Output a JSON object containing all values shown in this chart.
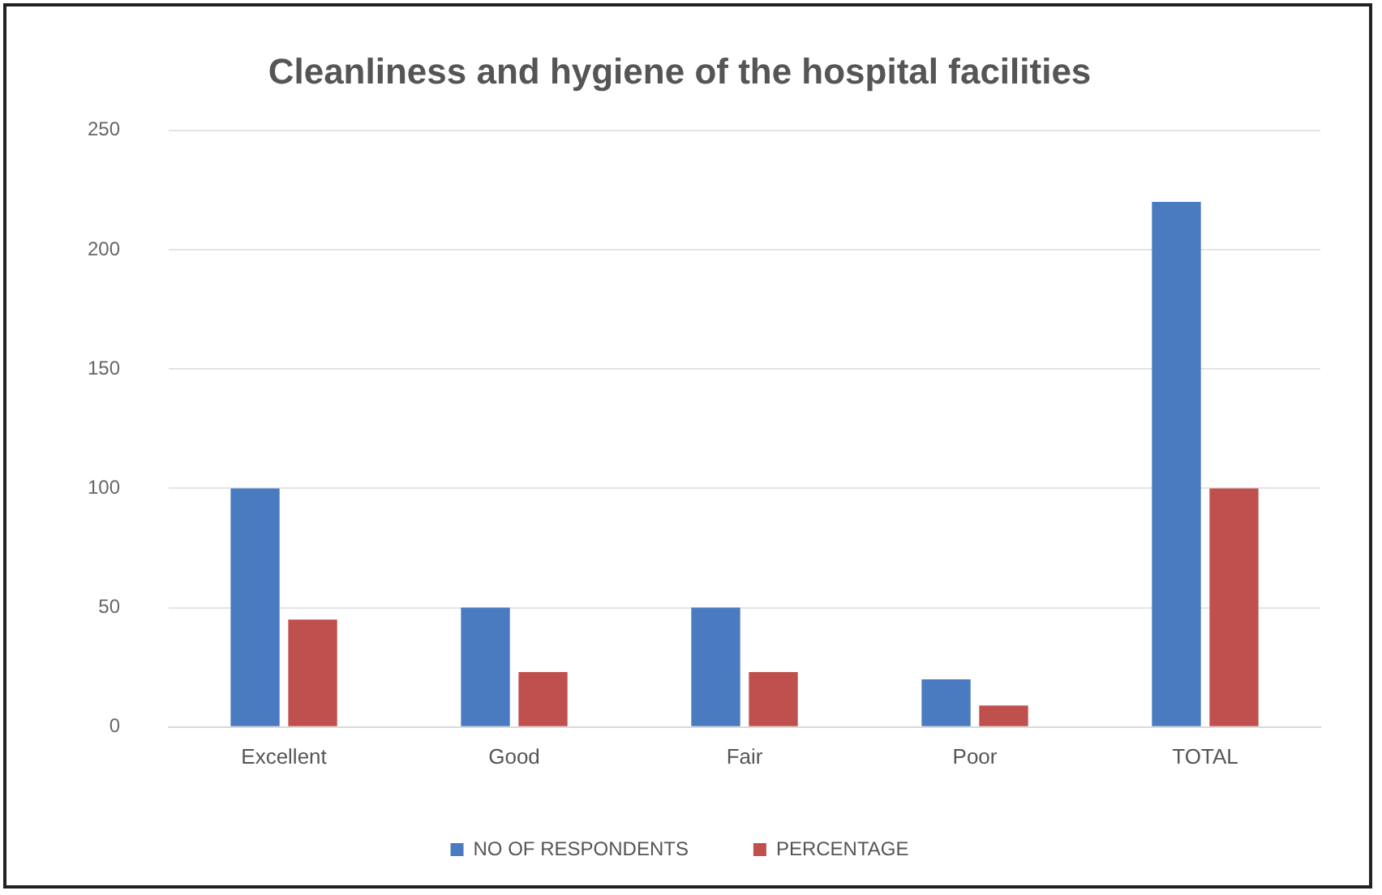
{
  "chart_data": {
    "type": "bar",
    "title": "Cleanliness and hygiene of the hospital facilities",
    "categories": [
      "Excellent",
      "Good",
      "Fair",
      "Poor",
      "TOTAL"
    ],
    "series": [
      {
        "name": "NO OF RESPONDENTS",
        "color": "#4a7bc0",
        "values": [
          100,
          50,
          50,
          20,
          220
        ]
      },
      {
        "name": "PERCENTAGE",
        "color": "#c0504d",
        "values": [
          45,
          23,
          23,
          9,
          100
        ]
      }
    ],
    "ylim": [
      0,
      250
    ],
    "yticks": [
      0,
      50,
      100,
      150,
      200,
      250
    ],
    "grid": "y",
    "legend": "bottom"
  }
}
